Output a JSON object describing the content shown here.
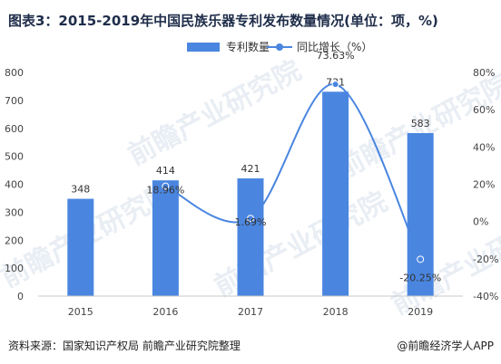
{
  "title": "图表3：2015-2019年中国民族乐器专利发布数量情况(单位：项，%)",
  "source": "资料来源：国家知识产权局 前瞻产业研究院整理",
  "brand": "@前瞻经济学人APP",
  "watermarks": [
    "前瞻产业研究院",
    "前瞻产业研究院",
    "前瞻产业研究院",
    "前瞻产业研究院",
    "前瞻产业研究院"
  ],
  "colors": {
    "bar": "#4a86e0",
    "line": "#4a86e0",
    "axis_text": "#444444",
    "grid": "#dddddd"
  },
  "chart_data": {
    "type": "bar",
    "categories": [
      "2015",
      "2016",
      "2017",
      "2018",
      "2019"
    ],
    "series": [
      {
        "name": "专利数量",
        "type": "bar",
        "axis": "left",
        "values": [
          348,
          414,
          421,
          731,
          583
        ],
        "labels": [
          "348",
          "414",
          "421",
          "731",
          "583"
        ]
      },
      {
        "name": "同比增长（%）",
        "type": "line",
        "axis": "right",
        "values": [
          null,
          18.96,
          1.69,
          73.63,
          -20.25
        ],
        "labels": [
          "",
          "18.96%",
          "1.69%",
          "73.63%",
          "-20.25%"
        ]
      }
    ],
    "ylim": [
      0,
      800
    ],
    "yticks": [
      "0",
      "100",
      "200",
      "300",
      "400",
      "500",
      "600",
      "700",
      "800"
    ],
    "y2lim": [
      -40,
      80
    ],
    "y2ticks": [
      "-40%",
      "-20%",
      "0%",
      "20%",
      "40%",
      "60%",
      "80%"
    ],
    "legend": "top-center",
    "grid": false
  }
}
